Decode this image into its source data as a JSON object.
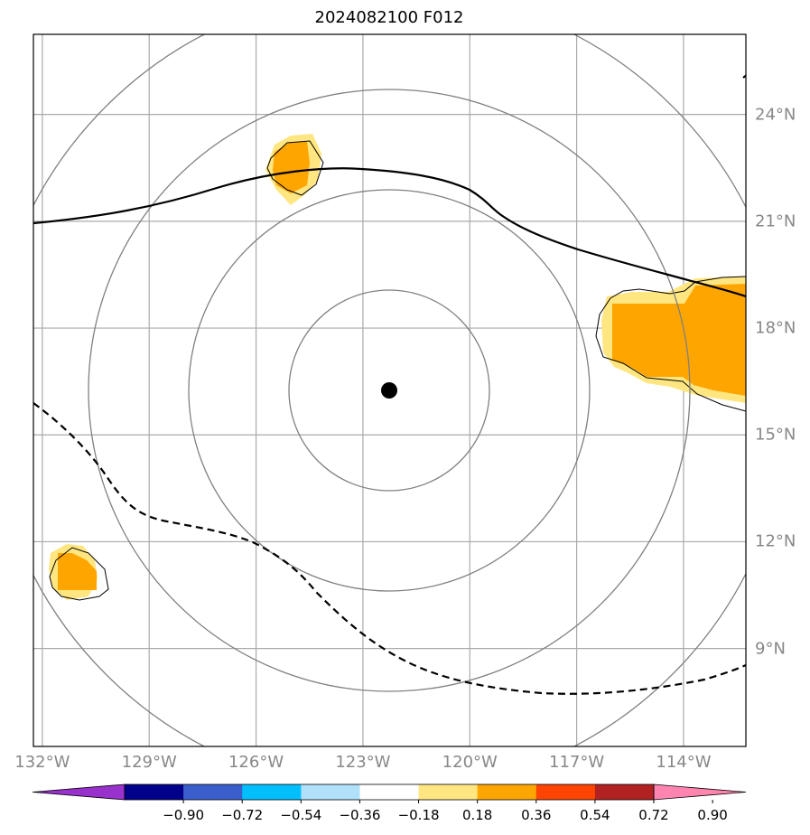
{
  "title": "2024082100 F012",
  "map": {
    "lon_labels": [
      "132°W",
      "129°W",
      "126°W",
      "123°W",
      "120°W",
      "117°W",
      "114°W"
    ],
    "lat_labels": [
      "24°N",
      "21°N",
      "18°N",
      "15°N",
      "12°N",
      "9°N"
    ],
    "lon_values": [
      -132,
      -129,
      -126,
      -123,
      -120,
      -117,
      -114
    ],
    "lat_values": [
      24,
      21,
      18,
      15,
      12,
      9
    ],
    "extent": {
      "lon_min": -132.25,
      "lon_max": -112.25,
      "lat_min": 6.25,
      "lat_max": 26.25
    },
    "center_marker": {
      "lon": -122.25,
      "lat": 16.0
    },
    "colors": {
      "grid": "#aaaaaa",
      "range_rings": "#808080",
      "shading_light": "#ffe680",
      "shading_dark": "#ffa500"
    }
  },
  "colorbar": {
    "tick_labels": [
      "−0.90",
      "−0.72",
      "−0.54",
      "−0.36",
      "−0.18",
      "0.18",
      "0.36",
      "0.54",
      "0.72",
      "0.90"
    ],
    "colors": [
      "#9932cc",
      "#00008b",
      "#3a5fcd",
      "#00bfff",
      "#b0e0fa",
      "#ffffff",
      "#ffe680",
      "#ffa500",
      "#ff4500",
      "#b22222",
      "#ff85b0"
    ]
  }
}
